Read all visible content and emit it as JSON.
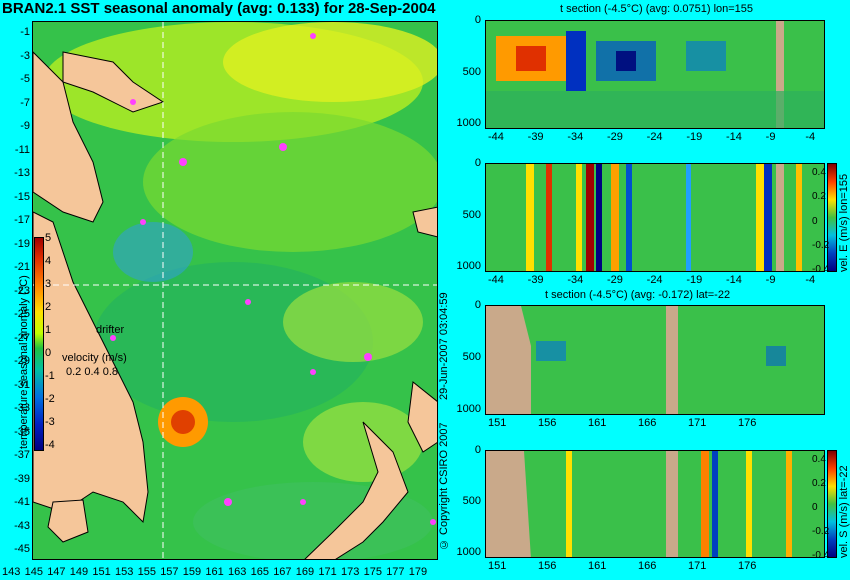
{
  "map": {
    "title": "BRAN2.1 SST seasonal anomaly (avg: 0.133) for 28-Sep-2004",
    "lat_labels": [
      "-1",
      "-3",
      "-5",
      "-7",
      "-9",
      "-11",
      "-13",
      "-15",
      "-17",
      "-19",
      "-21",
      "-23",
      "-25",
      "-27",
      "-29",
      "-31",
      "-33",
      "-35",
      "-37",
      "-39",
      "-41",
      "-43",
      "-45"
    ],
    "lon_labels": [
      "143",
      "145",
      "147",
      "149",
      "151",
      "153",
      "155",
      "157",
      "159",
      "161",
      "163",
      "165",
      "167",
      "169",
      "171",
      "173",
      "175",
      "177",
      "179"
    ],
    "colorbar_label": "temperature seasonal anomaly (°C)",
    "colorbar_ticks": [
      "5",
      "4",
      "3",
      "2",
      "1",
      "0",
      "-1",
      "-2",
      "-3",
      "-4"
    ],
    "drifter_label": "drifter",
    "velocity_label": "velocity (m/s)",
    "velocity_scale": "0.2 0.4 0.8",
    "date_stamp": "29-Jun-2007 03:04:59",
    "copyright": "© Copyright CSIRO 2007"
  },
  "panels": [
    {
      "title": "t section (-4.5°C) (avg: 0.0751) lon=155",
      "yticks": [
        "0",
        "500",
        "1000"
      ],
      "xticks": [
        "-44",
        "-39",
        "-34",
        "-29",
        "-24",
        "-19",
        "-14",
        "-9",
        "-4"
      ],
      "side_label": ""
    },
    {
      "title": "",
      "yticks": [
        "0",
        "500",
        "1000"
      ],
      "xticks": [
        "-44",
        "-39",
        "-34",
        "-29",
        "-24",
        "-19",
        "-14",
        "-9",
        "-4"
      ],
      "side_label": "vel. E (m/s) lon=155",
      "cbar_ticks": [
        "0.4",
        "0.2",
        "0",
        "-0.2",
        "-0.4"
      ]
    },
    {
      "title": "t section (-4.5°C) (avg: -0.172) lat=-22",
      "yticks": [
        "0",
        "500",
        "1000"
      ],
      "xticks": [
        "151",
        "156",
        "161",
        "166",
        "171",
        "176"
      ],
      "side_label": ""
    },
    {
      "title": "",
      "yticks": [
        "0",
        "500",
        "1000"
      ],
      "xticks": [
        "151",
        "156",
        "161",
        "166",
        "171",
        "176"
      ],
      "side_label": "vel. S (m/s) lat=-22",
      "cbar_ticks": [
        "0.4",
        "0.2",
        "0",
        "-0.2",
        "-0.4"
      ]
    }
  ]
}
